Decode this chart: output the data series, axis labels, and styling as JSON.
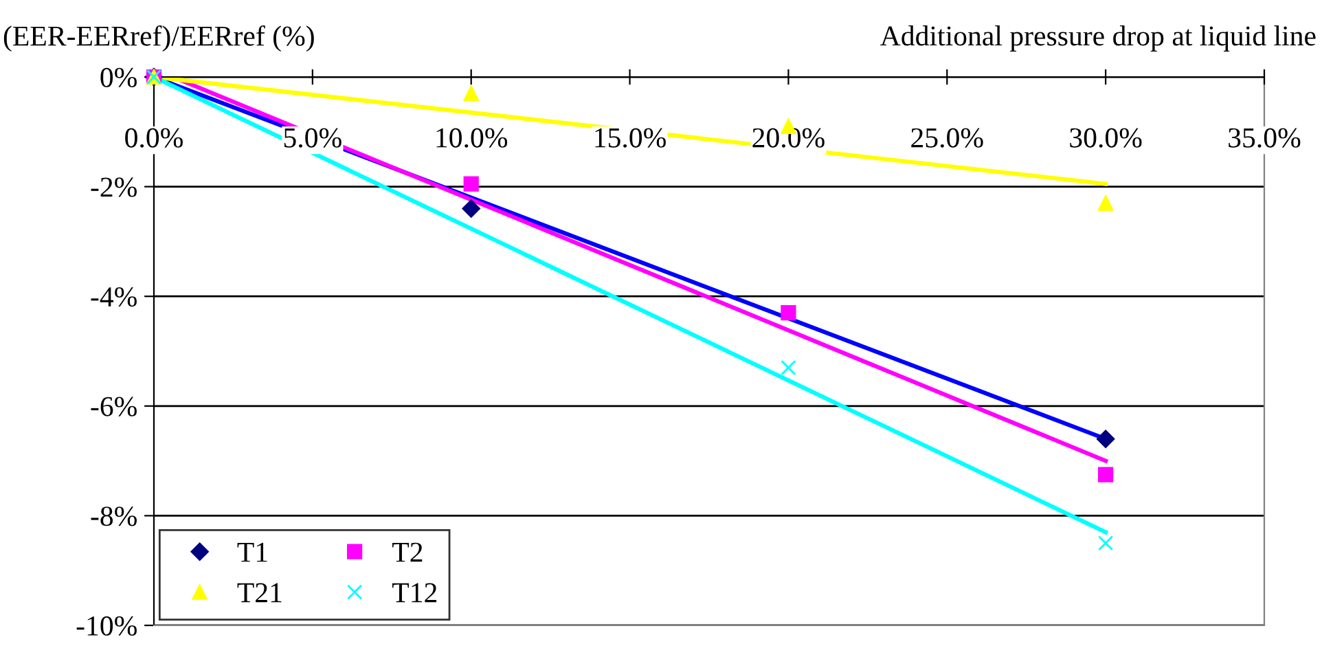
{
  "chart_data": {
    "type": "scatter",
    "xlabel": "Additional pressure drop at liquid line",
    "ylabel": "(EER-EERref)/EERref (%)",
    "x": [
      0,
      10,
      20,
      30
    ],
    "series": [
      {
        "name": "T1",
        "marker": "diamond",
        "color": "#000080",
        "values": [
          0,
          -2.4,
          null,
          -6.6
        ]
      },
      {
        "name": "T2",
        "marker": "square",
        "color": "#ff00ff",
        "values": [
          0,
          -1.95,
          -4.3,
          -7.25
        ]
      },
      {
        "name": "T21",
        "marker": "triangle",
        "color": "#ffff00",
        "values": [
          0,
          -0.3,
          -0.9,
          -2.3
        ]
      },
      {
        "name": "T12",
        "marker": "cross",
        "color": "#00ffff",
        "values": [
          0,
          null,
          -5.3,
          -8.5
        ]
      },
      {
        "type": "line",
        "color": "#0000ff",
        "x": [
          0,
          30
        ],
        "values": [
          0,
          -6.6
        ]
      },
      {
        "type": "line",
        "color": "#ff00ff",
        "x": [
          0.6,
          30
        ],
        "values": [
          0,
          -7.0
        ]
      },
      {
        "type": "line",
        "color": "#ffff00",
        "x": [
          0,
          30
        ],
        "values": [
          0,
          -1.95
        ]
      },
      {
        "type": "line",
        "color": "#00ffff",
        "x": [
          0,
          30
        ],
        "values": [
          0,
          -8.3
        ]
      }
    ],
    "xlim": [
      0,
      35
    ],
    "xticks": [
      {
        "value": 0,
        "label": "0.0%"
      },
      {
        "value": 5,
        "label": "5.0%"
      },
      {
        "value": 10,
        "label": "10.0%"
      },
      {
        "value": 15,
        "label": "15.0%"
      },
      {
        "value": 20,
        "label": "20.0%"
      },
      {
        "value": 25,
        "label": "25.0%"
      },
      {
        "value": 30,
        "label": "30.0%"
      },
      {
        "value": 35,
        "label": "35.0%"
      }
    ],
    "ylim": [
      -10,
      0
    ],
    "yticks": [
      {
        "value": 0,
        "label": "0%"
      },
      {
        "value": -2,
        "label": "-2%"
      },
      {
        "value": -4,
        "label": "-4%"
      },
      {
        "value": -6,
        "label": "-6%"
      },
      {
        "value": -8,
        "label": "-8%"
      },
      {
        "value": -10,
        "label": "-10%"
      }
    ],
    "grid": "y",
    "legend": "bottom left"
  }
}
